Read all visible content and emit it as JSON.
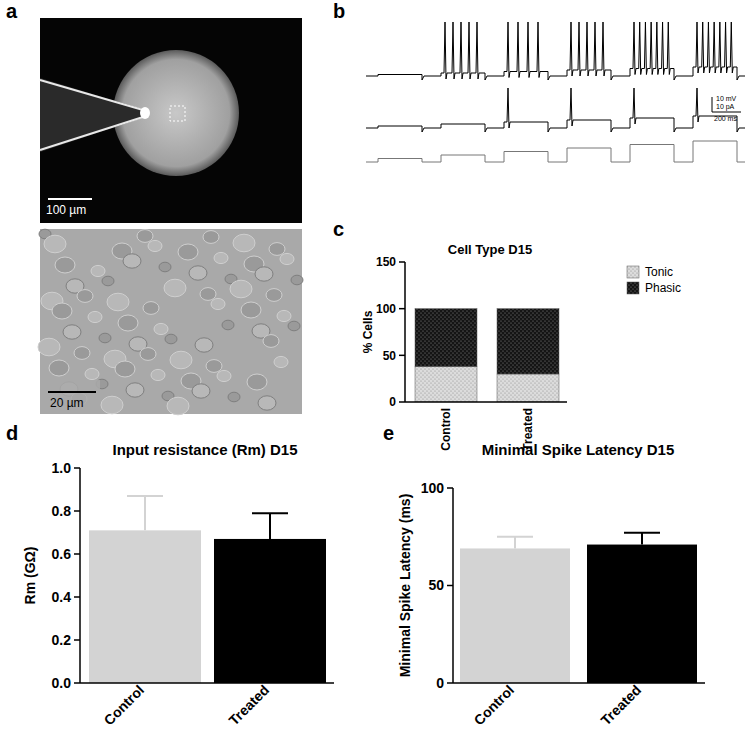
{
  "figure": {
    "panel_labels": [
      "a",
      "b",
      "c",
      "d",
      "e"
    ],
    "scale_bars": {
      "image_top": "100 µm",
      "image_bottom": "20 µm",
      "voltage": "10 mV",
      "current": "10 pA",
      "time": "200 ms"
    }
  },
  "chart_data": [
    {
      "type": "bar",
      "title": "Cell Type D15",
      "y_label": "% Cells",
      "categories": [
        "Control",
        "Treated"
      ],
      "series": [
        {
          "name": "Tonic",
          "color": "#dcdcdc",
          "values": [
            38,
            30
          ]
        },
        {
          "name": "Phasic",
          "color": "#141414",
          "values": [
            62,
            70
          ]
        }
      ],
      "stacked": true,
      "ylim": [
        0,
        150
      ],
      "yticks": [
        0,
        50,
        100,
        150
      ],
      "legend": "right"
    },
    {
      "type": "bar",
      "title": "Input resistance (Rm) D15",
      "y_label": "Rm (GΩ)",
      "categories": [
        "Control",
        "Treated"
      ],
      "values": [
        0.71,
        0.67
      ],
      "errors": [
        0.16,
        0.12
      ],
      "colors": [
        "#d3d3d3",
        "#000000"
      ],
      "ylim": [
        0,
        1
      ],
      "yticks": [
        {
          "value": 0,
          "label": "0.0"
        },
        0.2,
        0.4,
        0.6,
        0.8,
        {
          "value": 1,
          "label": "1.0"
        }
      ]
    },
    {
      "type": "bar",
      "title": "Minimal Spike Latency D15",
      "y_label": "Minimal Spike Latency (ms)",
      "categories": [
        "Control",
        "Treated"
      ],
      "values": [
        69,
        71
      ],
      "errors": [
        6,
        6
      ],
      "colors": [
        "#d3d3d3",
        "#000000"
      ],
      "ylim": [
        0,
        100
      ],
      "yticks": [
        0,
        50,
        100
      ]
    }
  ]
}
